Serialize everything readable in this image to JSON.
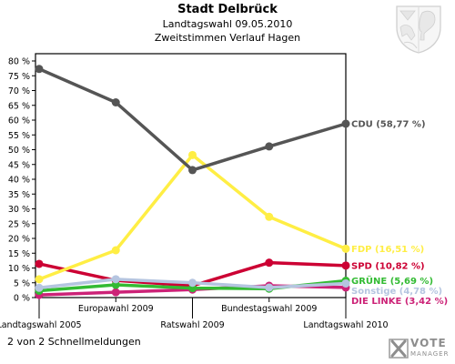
{
  "header": {
    "title": "Stadt Delbrück",
    "subtitle_1": "Landtagswahl 09.05.2010",
    "subtitle_2": "Zweitstimmen Verlauf Hagen"
  },
  "footer": {
    "text": "2 von 2 Schnellmeldungen"
  },
  "brand": {
    "line_1": "VOTE",
    "line_2": "MANAGER"
  },
  "crest": {
    "icon": "coat-of-arms-icon"
  },
  "chart_data": {
    "type": "line",
    "categories": [
      "Landtagswahl 2005",
      "Europawahl 2009",
      "Ratswahl 2009",
      "Bundestagswahl 2009",
      "Landtagswahl 2010"
    ],
    "ylim": [
      0,
      80
    ],
    "y_ticks": [
      0,
      5,
      10,
      15,
      20,
      25,
      30,
      35,
      40,
      45,
      50,
      55,
      60,
      65,
      70,
      75,
      80
    ],
    "y_tick_labels": [
      "0 %",
      "5 %",
      "10 %",
      "15 %",
      "20 %",
      "25 %",
      "30 %",
      "35 %",
      "40 %",
      "45 %",
      "50 %",
      "55 %",
      "60 %",
      "65 %",
      "70 %",
      "75 %",
      "80 %"
    ],
    "grid": false,
    "series": [
      {
        "name": "CDU",
        "label": "CDU (58,77 %)",
        "color": "#555555",
        "values": [
          77.3,
          66.0,
          43.1,
          51.1,
          58.77
        ]
      },
      {
        "name": "FDP",
        "label": "FDP (16,51 %)",
        "color": "#ffee44",
        "values": [
          6.2,
          16.0,
          48.2,
          27.3,
          16.51
        ]
      },
      {
        "name": "SPD",
        "label": "SPD (10,82 %)",
        "color": "#cc0033",
        "values": [
          11.4,
          5.8,
          4.0,
          11.8,
          10.82
        ]
      },
      {
        "name": "GRÜNE",
        "label": "GRÜNE (5,69 %)",
        "color": "#33bb33",
        "values": [
          2.3,
          4.3,
          3.2,
          3.0,
          5.69
        ]
      },
      {
        "name": "Sonstige",
        "label": "Sonstige (4,78 %)",
        "color": "#b5c5e0",
        "values": [
          3.3,
          6.2,
          5.0,
          3.4,
          4.78
        ]
      },
      {
        "name": "DIE LINKE",
        "label": "DIE LINKE (3,42 %)",
        "color": "#cc2277",
        "values": [
          0.9,
          1.8,
          2.7,
          4.0,
          3.42
        ]
      }
    ]
  }
}
